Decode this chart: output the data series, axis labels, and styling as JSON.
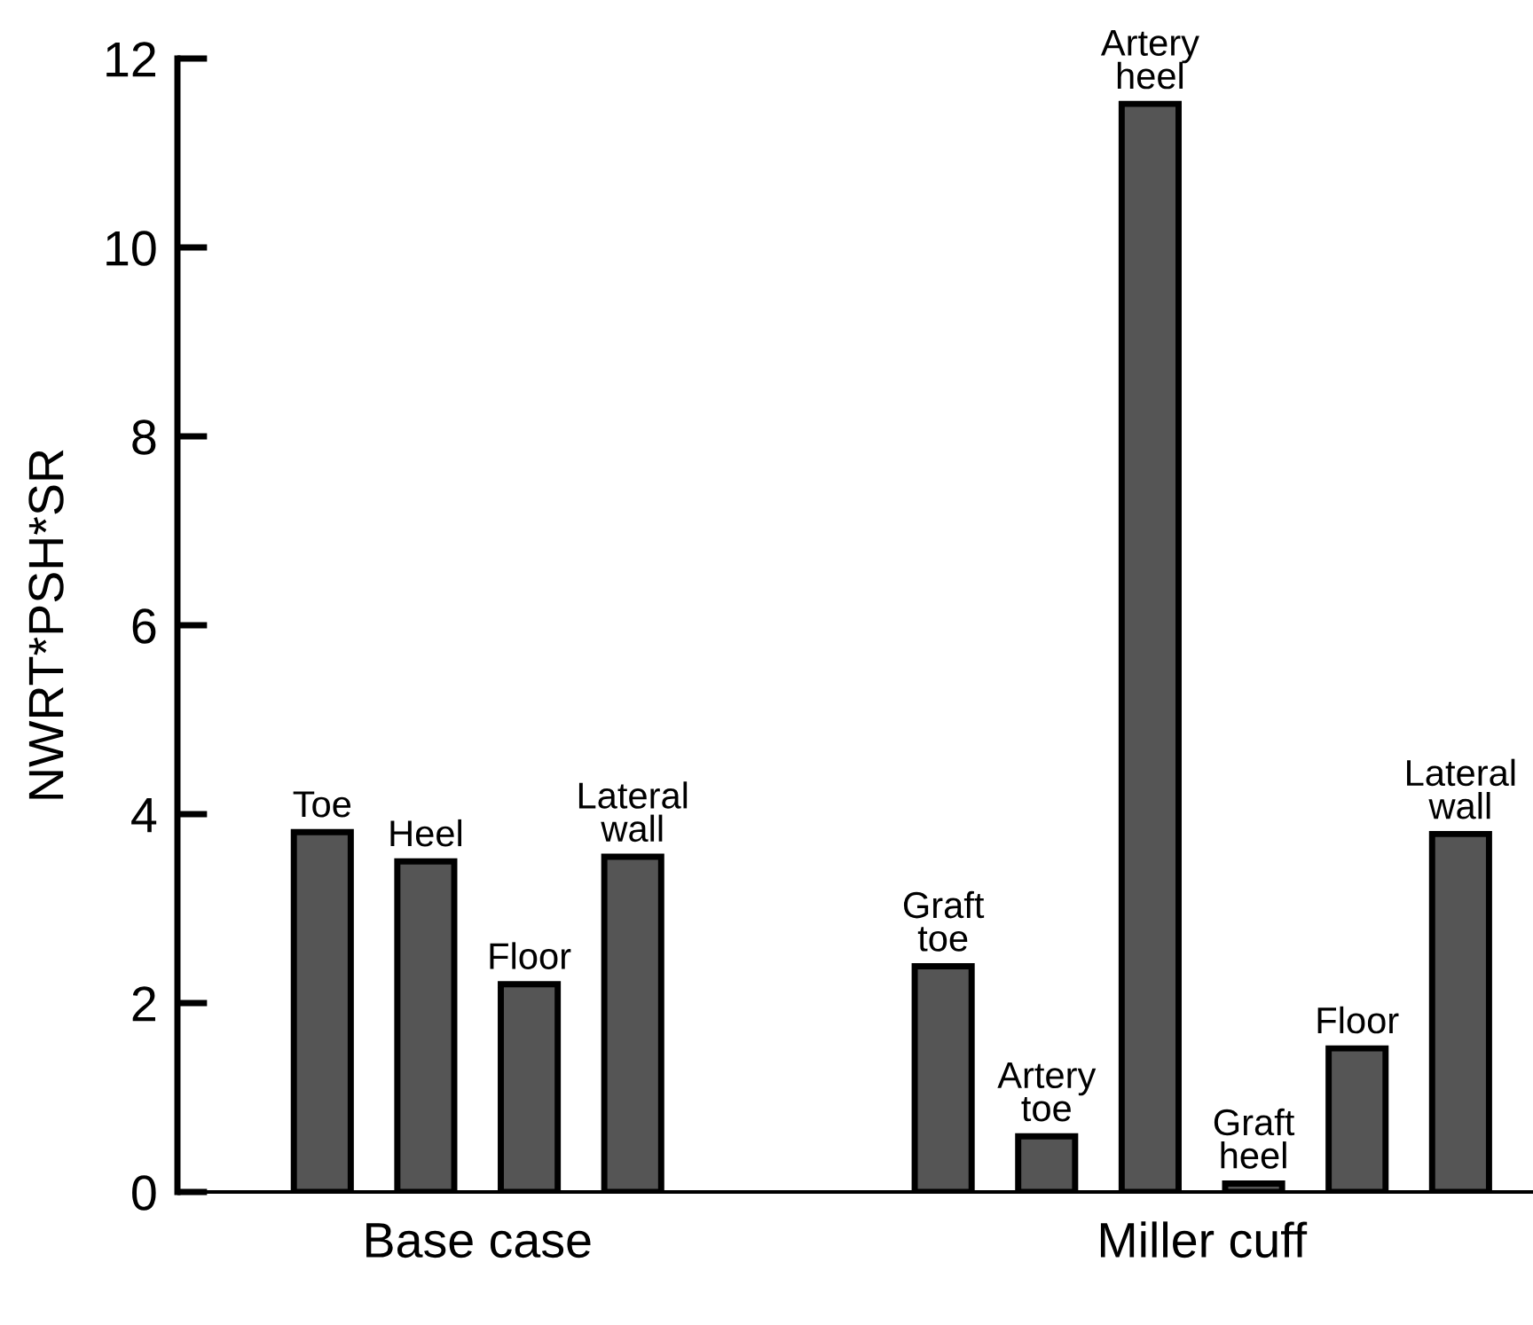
{
  "chart_data": {
    "type": "bar",
    "ylabel": "NWRT*PSH*SR",
    "categories": [
      "Toe",
      "Heel",
      "Floor",
      "Lateral\nwall",
      null,
      null,
      "Graft\ntoe",
      "Artery\ntoe",
      "Artery\nheel",
      "Graft\nheel",
      "Floor",
      "Lateral\nwall"
    ],
    "values": [
      3.81,
      3.5,
      2.2,
      3.55,
      null,
      null,
      2.39,
      0.59,
      11.52,
      0.09,
      1.52,
      3.79
    ],
    "color": "#555555",
    "ylim": [
      0,
      12
    ],
    "yticks": [
      0,
      2,
      4,
      6,
      8,
      10,
      12
    ],
    "annotations": [
      "Base case",
      "Miller cuff"
    ],
    "grid": false,
    "legend": false
  }
}
